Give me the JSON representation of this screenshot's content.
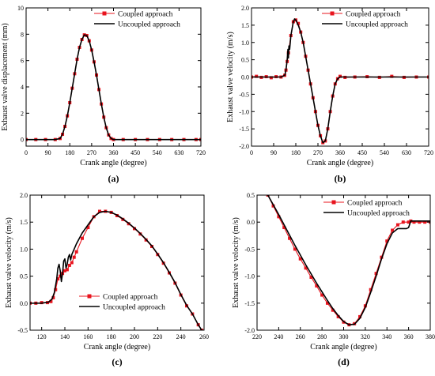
{
  "colors": {
    "coupled": "#e8141e",
    "uncoupled": "#000000"
  },
  "chart_data": [
    {
      "type": "line",
      "panel_label": "(a)",
      "xlabel": "Crank angle (degree)",
      "ylabel": "Exhaust valve displacement (mm)",
      "xlim": [
        0,
        720
      ],
      "ylim": [
        -0.5,
        10
      ],
      "xticks": [
        0,
        90,
        180,
        270,
        360,
        450,
        540,
        630,
        720
      ],
      "yticks": [
        0,
        2,
        4,
        6,
        8,
        10
      ],
      "legend_position": "top-right",
      "series": [
        {
          "name": "Coupled approach",
          "style": "line-marker",
          "x": [
            0,
            40,
            80,
            120,
            140,
            150,
            160,
            170,
            180,
            190,
            200,
            210,
            220,
            230,
            240,
            250,
            260,
            270,
            280,
            290,
            300,
            310,
            320,
            330,
            340,
            350,
            360,
            400,
            450,
            500,
            550,
            600,
            650,
            700,
            720
          ],
          "y": [
            0,
            0,
            0,
            0,
            0.08,
            0.4,
            1.0,
            1.8,
            2.8,
            3.9,
            5.0,
            6.1,
            7.0,
            7.6,
            7.95,
            7.9,
            7.5,
            6.8,
            5.9,
            4.9,
            3.8,
            2.7,
            1.7,
            0.9,
            0.35,
            0.08,
            0,
            0,
            0,
            0,
            0,
            0,
            0,
            0,
            0
          ]
        },
        {
          "name": "Uncoupled approach",
          "style": "line",
          "x": [
            0,
            40,
            80,
            120,
            140,
            150,
            160,
            170,
            180,
            190,
            200,
            210,
            220,
            230,
            240,
            250,
            260,
            270,
            280,
            290,
            300,
            310,
            320,
            330,
            340,
            350,
            360,
            400,
            450,
            500,
            550,
            600,
            650,
            700,
            720
          ],
          "y": [
            0,
            0,
            0,
            0,
            0.08,
            0.4,
            1.0,
            1.8,
            2.8,
            3.9,
            5.0,
            6.1,
            7.0,
            7.6,
            7.95,
            7.9,
            7.5,
            6.8,
            5.9,
            4.9,
            3.8,
            2.7,
            1.7,
            0.9,
            0.35,
            0.08,
            0,
            0,
            0,
            0,
            0,
            0,
            0,
            0,
            0
          ]
        }
      ]
    },
    {
      "type": "line",
      "panel_label": "(b)",
      "xlabel": "Crank angle (degree)",
      "ylabel": "Exhaust valve velocity (m/s)",
      "xlim": [
        0,
        720
      ],
      "ylim": [
        -2.0,
        2.0
      ],
      "xticks": [
        0,
        90,
        180,
        270,
        360,
        450,
        540,
        630,
        720
      ],
      "yticks": [
        -2.0,
        -1.5,
        -1.0,
        -0.5,
        0.0,
        0.5,
        1.0,
        1.5,
        2.0
      ],
      "legend_position": "top-right",
      "series": [
        {
          "name": "Coupled approach",
          "style": "line-marker",
          "x": [
            0,
            20,
            40,
            60,
            80,
            100,
            120,
            135,
            140,
            145,
            150,
            160,
            170,
            180,
            190,
            200,
            210,
            220,
            230,
            240,
            250,
            260,
            270,
            280,
            290,
            300,
            310,
            320,
            330,
            340,
            350,
            360,
            380,
            420,
            470,
            520,
            570,
            620,
            670,
            720
          ],
          "y": [
            0,
            0.02,
            -0.01,
            0.01,
            -0.02,
            0.01,
            0,
            0.05,
            0.2,
            0.45,
            0.7,
            1.2,
            1.6,
            1.65,
            1.55,
            1.3,
            1.0,
            0.6,
            0.2,
            -0.2,
            -0.6,
            -1.0,
            -1.4,
            -1.7,
            -1.9,
            -1.85,
            -1.5,
            -1.0,
            -0.55,
            -0.2,
            -0.05,
            0.02,
            -0.01,
            0,
            0.01,
            -0.01,
            0.02,
            -0.01,
            0,
            0
          ]
        },
        {
          "name": "Uncoupled approach",
          "style": "line",
          "x": [
            0,
            40,
            80,
            120,
            135,
            140,
            145,
            148,
            150,
            152,
            155,
            160,
            170,
            175,
            180,
            190,
            200,
            210,
            220,
            230,
            240,
            250,
            260,
            270,
            280,
            290,
            300,
            310,
            320,
            330,
            340,
            350,
            360,
            400,
            500,
            600,
            720
          ],
          "y": [
            0,
            0,
            0,
            0,
            0.05,
            0.2,
            0.5,
            0.8,
            0.55,
            0.9,
            0.8,
            1.2,
            1.6,
            1.68,
            1.65,
            1.5,
            1.3,
            1.0,
            0.6,
            0.2,
            -0.2,
            -0.6,
            -1.0,
            -1.4,
            -1.7,
            -1.9,
            -1.85,
            -1.5,
            -1.0,
            -0.55,
            -0.2,
            -0.05,
            0,
            0,
            0,
            0,
            0
          ]
        }
      ]
    },
    {
      "type": "line",
      "panel_label": "(c)",
      "xlabel": "Crank angle (degree)",
      "ylabel": "Exhaust valve velocity (m/s)",
      "xlim": [
        110,
        260
      ],
      "ylim": [
        -0.5,
        2.0
      ],
      "xticks": [
        120,
        140,
        160,
        180,
        200,
        220,
        240,
        260
      ],
      "yticks": [
        -0.5,
        0.0,
        0.5,
        1.0,
        1.5,
        2.0
      ],
      "legend_position": "bottom-center",
      "series": [
        {
          "name": "Coupled approach",
          "style": "line-marker",
          "x": [
            110,
            115,
            120,
            125,
            128,
            130,
            132,
            134,
            136,
            138,
            140,
            142,
            144,
            146,
            148,
            150,
            155,
            160,
            165,
            170,
            175,
            180,
            185,
            190,
            195,
            200,
            205,
            210,
            215,
            220,
            225,
            230,
            235,
            240,
            245,
            250,
            255,
            258
          ],
          "y": [
            0,
            0,
            0.01,
            0.01,
            0.03,
            0.1,
            0.25,
            0.45,
            0.5,
            0.55,
            0.6,
            0.62,
            0.7,
            0.75,
            0.85,
            0.95,
            1.2,
            1.4,
            1.6,
            1.7,
            1.7,
            1.68,
            1.62,
            1.55,
            1.47,
            1.38,
            1.28,
            1.17,
            1.05,
            0.9,
            0.74,
            0.56,
            0.37,
            0.15,
            -0.05,
            -0.2,
            -0.4,
            -0.5
          ]
        },
        {
          "name": "Uncoupled approach",
          "style": "line",
          "x": [
            110,
            120,
            126,
            129,
            131,
            133,
            134,
            135,
            136,
            137,
            138,
            139,
            140,
            141,
            142,
            143,
            144,
            145,
            146,
            148,
            150,
            155,
            160,
            165,
            170,
            175,
            180,
            185,
            190,
            195,
            200,
            205,
            210,
            215,
            220,
            225,
            230,
            235,
            240,
            245,
            250,
            255,
            258
          ],
          "y": [
            0,
            0,
            0.02,
            0.08,
            0.2,
            0.45,
            0.65,
            0.72,
            0.6,
            0.4,
            0.55,
            0.78,
            0.82,
            0.65,
            0.72,
            0.85,
            0.9,
            0.8,
            0.9,
            1.0,
            1.1,
            1.3,
            1.45,
            1.6,
            1.68,
            1.7,
            1.68,
            1.63,
            1.56,
            1.48,
            1.39,
            1.29,
            1.18,
            1.06,
            0.91,
            0.75,
            0.57,
            0.38,
            0.16,
            -0.04,
            -0.2,
            -0.4,
            -0.5
          ]
        }
      ]
    },
    {
      "type": "line",
      "panel_label": "(d)",
      "xlabel": "Crank angle (degree)",
      "ylabel": "Exhaust valve velocity (m/s)",
      "xlim": [
        220,
        380
      ],
      "ylim": [
        -2.0,
        0.5
      ],
      "xticks": [
        220,
        240,
        260,
        280,
        300,
        320,
        340,
        360,
        380
      ],
      "yticks": [
        -2.0,
        -1.5,
        -1.0,
        -0.5,
        0.0,
        0.5
      ],
      "legend_position": "top-right",
      "series": [
        {
          "name": "Coupled approach",
          "style": "line-marker",
          "x": [
            230,
            235,
            240,
            245,
            250,
            255,
            260,
            265,
            270,
            275,
            280,
            285,
            290,
            295,
            300,
            305,
            310,
            315,
            320,
            325,
            330,
            335,
            340,
            345,
            350,
            355,
            360,
            362,
            365,
            370,
            375,
            380
          ],
          "y": [
            0.5,
            0.3,
            0.1,
            -0.1,
            -0.3,
            -0.5,
            -0.68,
            -0.85,
            -1.02,
            -1.18,
            -1.35,
            -1.5,
            -1.63,
            -1.75,
            -1.85,
            -1.9,
            -1.88,
            -1.75,
            -1.55,
            -1.25,
            -0.95,
            -0.65,
            -0.35,
            -0.15,
            -0.05,
            0,
            0,
            0.02,
            0,
            0,
            0,
            0
          ]
        },
        {
          "name": "Uncoupled approach",
          "style": "line",
          "x": [
            230,
            235,
            240,
            245,
            250,
            255,
            260,
            265,
            270,
            275,
            280,
            285,
            290,
            295,
            300,
            305,
            310,
            315,
            320,
            325,
            330,
            335,
            340,
            345,
            350,
            355,
            358,
            360,
            362,
            365,
            370,
            375,
            380
          ],
          "y": [
            0.5,
            0.32,
            0.14,
            -0.05,
            -0.24,
            -0.43,
            -0.61,
            -0.79,
            -0.96,
            -1.13,
            -1.29,
            -1.45,
            -1.6,
            -1.73,
            -1.84,
            -1.9,
            -1.89,
            -1.78,
            -1.58,
            -1.3,
            -1.0,
            -0.68,
            -0.4,
            -0.2,
            -0.12,
            -0.12,
            -0.12,
            -0.1,
            0.02,
            0.02,
            0.02,
            0.02,
            0.02
          ]
        }
      ]
    }
  ]
}
